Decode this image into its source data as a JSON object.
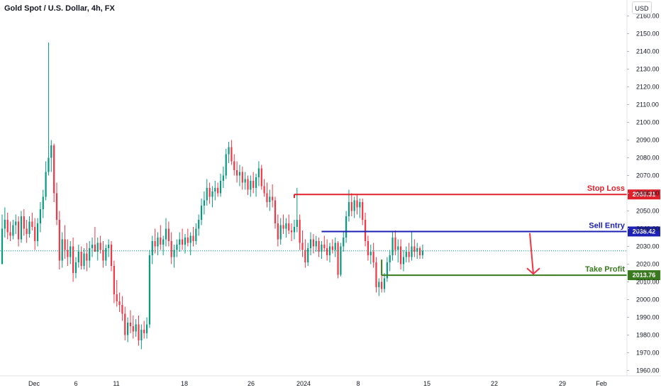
{
  "header": {
    "title": "Gold Spot / U.S. Dollar, 4h, FX",
    "currency": "USD"
  },
  "colors": {
    "up": "#089981",
    "down": "#f23645",
    "stop_loss": "#e0202a",
    "sell_entry": "#1e22b4",
    "take_profit": "#3a7a1e",
    "arrow": "#f23645",
    "grid": "#f0f3fa",
    "axis_text": "#131722"
  },
  "chart_data": {
    "type": "candlestick",
    "title": "Gold Spot / U.S. Dollar, 4h, FX",
    "ylim": [
      1957,
      2169
    ],
    "y_ticks": [
      2160,
      2150,
      2140,
      2130,
      2120,
      2110,
      2100,
      2090,
      2080,
      2070,
      2060,
      2050,
      2040,
      2030,
      2020,
      2010,
      2000,
      1990,
      1980,
      1970,
      1960
    ],
    "y_tick_labels": [
      "2160.00",
      "2150.00",
      "2140.00",
      "2130.00",
      "2120.00",
      "2110.00",
      "2100.00",
      "2090.00",
      "2080.00",
      "2070.00",
      "2060.00",
      "2050.00",
      "2040.00",
      "2030.00",
      "2020.00",
      "2010.00",
      "2000.00",
      "1990.00",
      "1980.00",
      "1970.00",
      "1960.00"
    ],
    "x_ticks": [
      "Dec",
      "6",
      "11",
      "18",
      "26",
      "2024",
      "8",
      "15",
      "22",
      "29",
      "Feb"
    ],
    "current_price": 2027.5,
    "levels": [
      {
        "name": "Stop Loss",
        "price": 2059.31,
        "label": "2059.31",
        "from_bar": 107
      },
      {
        "name": "Sell Entry",
        "price": 2038.42,
        "label": "2038.42",
        "from_bar": 117
      },
      {
        "name": "Take Profit",
        "price": 2013.76,
        "label": "2013.76",
        "from_bar": 139
      }
    ],
    "projection_arrow": {
      "from": 2037.5,
      "to": 2014.5
    },
    "candles": [
      [
        2020.0,
        2048.0,
        2020.0,
        2040.0
      ],
      [
        2040.0,
        2052.0,
        2035.0,
        2045.0
      ],
      [
        2045.0,
        2049.0,
        2034.0,
        2038.0
      ],
      [
        2038.0,
        2044.0,
        2033.0,
        2036.0
      ],
      [
        2036.0,
        2045.0,
        2034.0,
        2042.0
      ],
      [
        2042.0,
        2048.0,
        2037.0,
        2044.0
      ],
      [
        2044.0,
        2047.0,
        2030.0,
        2034.0
      ],
      [
        2034.0,
        2050.0,
        2032.0,
        2047.0
      ],
      [
        2047.0,
        2051.0,
        2036.0,
        2040.0
      ],
      [
        2040.0,
        2045.0,
        2032.0,
        2037.0
      ],
      [
        2037.0,
        2047.0,
        2035.0,
        2044.0
      ],
      [
        2044.0,
        2049.0,
        2039.0,
        2041.0
      ],
      [
        2041.0,
        2046.0,
        2028.0,
        2033.0
      ],
      [
        2033.0,
        2046.0,
        2030.0,
        2043.0
      ],
      [
        2043.0,
        2055.0,
        2038.0,
        2051.0
      ],
      [
        2051.0,
        2062.0,
        2046.0,
        2058.0
      ],
      [
        2058.0,
        2078.0,
        2056.0,
        2072.0
      ],
      [
        2072.0,
        2145.0,
        2070.0,
        2080.0
      ],
      [
        2080.0,
        2090.0,
        2072.0,
        2087.0
      ],
      [
        2087.0,
        2088.0,
        2055.0,
        2060.0
      ],
      [
        2060.0,
        2066.0,
        2042.0,
        2045.0
      ],
      [
        2045.0,
        2050.0,
        2017.0,
        2022.0
      ],
      [
        2022.0,
        2038.0,
        2018.0,
        2034.0
      ],
      [
        2034.0,
        2042.0,
        2023.0,
        2028.0
      ],
      [
        2028.0,
        2034.0,
        2019.0,
        2024.0
      ],
      [
        2024.0,
        2033.0,
        2020.0,
        2030.0
      ],
      [
        2030.0,
        2035.0,
        2010.0,
        2015.0
      ],
      [
        2015.0,
        2024.0,
        2012.0,
        2021.0
      ],
      [
        2021.0,
        2031.0,
        2018.0,
        2027.0
      ],
      [
        2027.0,
        2030.0,
        2017.0,
        2019.0
      ],
      [
        2019.0,
        2029.0,
        2017.0,
        2026.0
      ],
      [
        2026.0,
        2032.0,
        2016.0,
        2022.0
      ],
      [
        2022.0,
        2033.0,
        2018.0,
        2029.0
      ],
      [
        2029.0,
        2035.0,
        2024.0,
        2031.0
      ],
      [
        2031.0,
        2041.0,
        2027.0,
        2027.0
      ],
      [
        2027.0,
        2035.0,
        2022.0,
        2032.0
      ],
      [
        2032.0,
        2036.0,
        2026.0,
        2028.0
      ],
      [
        2028.0,
        2033.0,
        2018.0,
        2022.0
      ],
      [
        2022.0,
        2031.0,
        2019.0,
        2029.0
      ],
      [
        2029.0,
        2034.0,
        2024.0,
        2031.0
      ],
      [
        2031.0,
        2033.0,
        2016.0,
        2019.0
      ],
      [
        2019.0,
        2022.0,
        1998.0,
        2003.0
      ],
      [
        2003.0,
        2011.0,
        1996.0,
        1999.0
      ],
      [
        1999.0,
        2004.0,
        1993.0,
        1997.0
      ],
      [
        1997.0,
        2002.0,
        1988.0,
        1992.0
      ],
      [
        1992.0,
        1996.0,
        1977.0,
        1980.0
      ],
      [
        1980.0,
        1990.0,
        1976.0,
        1987.0
      ],
      [
        1987.0,
        1994.0,
        1981.0,
        1985.0
      ],
      [
        1985.0,
        1991.0,
        1978.0,
        1982.0
      ],
      [
        1982.0,
        1989.0,
        1979.0,
        1986.0
      ],
      [
        1986.0,
        1991.0,
        1974.0,
        1977.0
      ],
      [
        1977.0,
        1986.0,
        1972.0,
        1983.0
      ],
      [
        1983.0,
        1988.0,
        1978.0,
        1981.0
      ],
      [
        1981.0,
        1990.0,
        1978.0,
        1986.0
      ],
      [
        1986.0,
        2028.0,
        1984.0,
        2025.0
      ],
      [
        2025.0,
        2036.0,
        2020.0,
        2033.0
      ],
      [
        2033.0,
        2040.0,
        2026.0,
        2030.0
      ],
      [
        2030.0,
        2038.0,
        2025.0,
        2035.0
      ],
      [
        2035.0,
        2042.0,
        2028.0,
        2031.0
      ],
      [
        2031.0,
        2036.0,
        2025.0,
        2034.0
      ],
      [
        2034.0,
        2046.0,
        2030.0,
        2040.0
      ],
      [
        2040.0,
        2044.0,
        2030.0,
        2033.0
      ],
      [
        2033.0,
        2038.0,
        2020.0,
        2024.0
      ],
      [
        2024.0,
        2031.0,
        2018.0,
        2028.0
      ],
      [
        2028.0,
        2034.0,
        2024.0,
        2031.0
      ],
      [
        2031.0,
        2038.0,
        2027.0,
        2034.0
      ],
      [
        2034.0,
        2040.0,
        2028.0,
        2031.0
      ],
      [
        2031.0,
        2037.0,
        2026.0,
        2035.0
      ],
      [
        2035.0,
        2040.0,
        2030.0,
        2032.0
      ],
      [
        2032.0,
        2038.0,
        2025.0,
        2036.0
      ],
      [
        2036.0,
        2041.0,
        2030.0,
        2033.0
      ],
      [
        2033.0,
        2043.0,
        2031.0,
        2040.0
      ],
      [
        2040.0,
        2048.0,
        2036.0,
        2045.0
      ],
      [
        2045.0,
        2057.0,
        2042.0,
        2053.0
      ],
      [
        2053.0,
        2061.0,
        2048.0,
        2056.0
      ],
      [
        2056.0,
        2068.0,
        2053.0,
        2063.0
      ],
      [
        2063.0,
        2066.0,
        2054.0,
        2058.0
      ],
      [
        2058.0,
        2064.0,
        2052.0,
        2061.0
      ],
      [
        2061.0,
        2067.0,
        2056.0,
        2063.0
      ],
      [
        2063.0,
        2066.0,
        2058.0,
        2060.0
      ],
      [
        2060.0,
        2071.0,
        2058.0,
        2067.0
      ],
      [
        2067.0,
        2075.0,
        2063.0,
        2070.0
      ],
      [
        2070.0,
        2085.0,
        2068.0,
        2082.0
      ],
      [
        2082.0,
        2089.0,
        2077.0,
        2086.0
      ],
      [
        2086.0,
        2090.0,
        2076.0,
        2078.0
      ],
      [
        2078.0,
        2082.0,
        2070.0,
        2073.0
      ],
      [
        2073.0,
        2078.0,
        2066.0,
        2070.0
      ],
      [
        2070.0,
        2076.0,
        2064.0,
        2072.0
      ],
      [
        2072.0,
        2075.0,
        2062.0,
        2066.0
      ],
      [
        2066.0,
        2072.0,
        2062.0,
        2068.0
      ],
      [
        2068.0,
        2070.0,
        2059.0,
        2062.0
      ],
      [
        2062.0,
        2070.0,
        2058.0,
        2067.0
      ],
      [
        2067.0,
        2072.0,
        2060.0,
        2063.0
      ],
      [
        2063.0,
        2071.0,
        2058.0,
        2069.0
      ],
      [
        2069.0,
        2078.0,
        2064.0,
        2074.0
      ],
      [
        2074.0,
        2076.0,
        2062.0,
        2064.0
      ],
      [
        2064.0,
        2068.0,
        2058.0,
        2060.0
      ],
      [
        2060.0,
        2066.0,
        2052.0,
        2055.0
      ],
      [
        2055.0,
        2062.0,
        2050.0,
        2058.0
      ],
      [
        2058.0,
        2065.0,
        2052.0,
        2056.0
      ],
      [
        2056.0,
        2058.0,
        2040.0,
        2043.0
      ],
      [
        2043.0,
        2048.0,
        2030.0,
        2034.0
      ],
      [
        2034.0,
        2046.0,
        2031.0,
        2042.0
      ],
      [
        2042.0,
        2048.0,
        2037.0,
        2040.0
      ],
      [
        2040.0,
        2046.0,
        2035.0,
        2043.0
      ],
      [
        2043.0,
        2048.0,
        2037.0,
        2039.0
      ],
      [
        2039.0,
        2043.0,
        2033.0,
        2038.0
      ],
      [
        2038.0,
        2045.0,
        2034.0,
        2041.0
      ],
      [
        2041.0,
        2063.0,
        2038.0,
        2045.0
      ],
      [
        2045.0,
        2048.0,
        2028.0,
        2032.0
      ],
      [
        2032.0,
        2039.0,
        2024.0,
        2028.0
      ],
      [
        2028.0,
        2034.0,
        2018.0,
        2021.0
      ],
      [
        2021.0,
        2032.0,
        2019.0,
        2029.0
      ],
      [
        2029.0,
        2038.0,
        2025.0,
        2034.0
      ],
      [
        2034.0,
        2037.0,
        2026.0,
        2030.0
      ],
      [
        2030.0,
        2036.0,
        2027.0,
        2033.0
      ],
      [
        2033.0,
        2035.0,
        2024.0,
        2027.0
      ],
      [
        2027.0,
        2033.0,
        2023.0,
        2031.0
      ],
      [
        2031.0,
        2036.0,
        2027.0,
        2029.0
      ],
      [
        2029.0,
        2034.0,
        2022.0,
        2025.0
      ],
      [
        2025.0,
        2032.0,
        2021.0,
        2030.0
      ],
      [
        2030.0,
        2034.0,
        2026.0,
        2028.0
      ],
      [
        2028.0,
        2035.0,
        2024.0,
        2032.0
      ],
      [
        2032.0,
        2033.0,
        2012.0,
        2014.0
      ],
      [
        2014.0,
        2032.0,
        2013.0,
        2030.0
      ],
      [
        2030.0,
        2038.0,
        2027.0,
        2035.0
      ],
      [
        2035.0,
        2050.0,
        2032.0,
        2047.0
      ],
      [
        2047.0,
        2062.0,
        2044.0,
        2055.0
      ],
      [
        2055.0,
        2060.0,
        2047.0,
        2050.0
      ],
      [
        2050.0,
        2058.0,
        2046.0,
        2056.0
      ],
      [
        2056.0,
        2059.0,
        2048.0,
        2052.0
      ],
      [
        2052.0,
        2057.0,
        2046.0,
        2055.0
      ],
      [
        2055.0,
        2057.0,
        2042.0,
        2045.0
      ],
      [
        2045.0,
        2049.0,
        2030.0,
        2033.0
      ],
      [
        2033.0,
        2036.0,
        2022.0,
        2025.0
      ],
      [
        2025.0,
        2031.0,
        2020.0,
        2027.0
      ],
      [
        2027.0,
        2032.0,
        2018.0,
        2021.0
      ],
      [
        2021.0,
        2024.0,
        2004.0,
        2007.0
      ],
      [
        2007.0,
        2012.0,
        2002.0,
        2010.0
      ],
      [
        2010.0,
        2014.0,
        2004.0,
        2006.0
      ],
      [
        2006.0,
        2015.0,
        2004.0,
        2012.0
      ],
      [
        2012.0,
        2024.0,
        2010.0,
        2021.0
      ],
      [
        2021.0,
        2028.0,
        2016.0,
        2025.0
      ],
      [
        2025.0,
        2038.0,
        2022.0,
        2035.0
      ],
      [
        2035.0,
        2039.0,
        2025.0,
        2028.0
      ],
      [
        2028.0,
        2034.0,
        2021.0,
        2030.0
      ],
      [
        2030.0,
        2034.0,
        2017.0,
        2020.0
      ],
      [
        2020.0,
        2028.0,
        2016.0,
        2024.0
      ],
      [
        2024.0,
        2030.0,
        2021.0,
        2027.0
      ],
      [
        2027.0,
        2032.0,
        2021.0,
        2024.0
      ],
      [
        2024.0,
        2038.0,
        2022.0,
        2030.0
      ],
      [
        2030.0,
        2034.0,
        2024.0,
        2027.0
      ],
      [
        2027.0,
        2032.0,
        2023.0,
        2029.0
      ],
      [
        2029.0,
        2030.0,
        2023.0,
        2025.0
      ],
      [
        2025.0,
        2031.0,
        2023.0,
        2027.5
      ]
    ]
  }
}
